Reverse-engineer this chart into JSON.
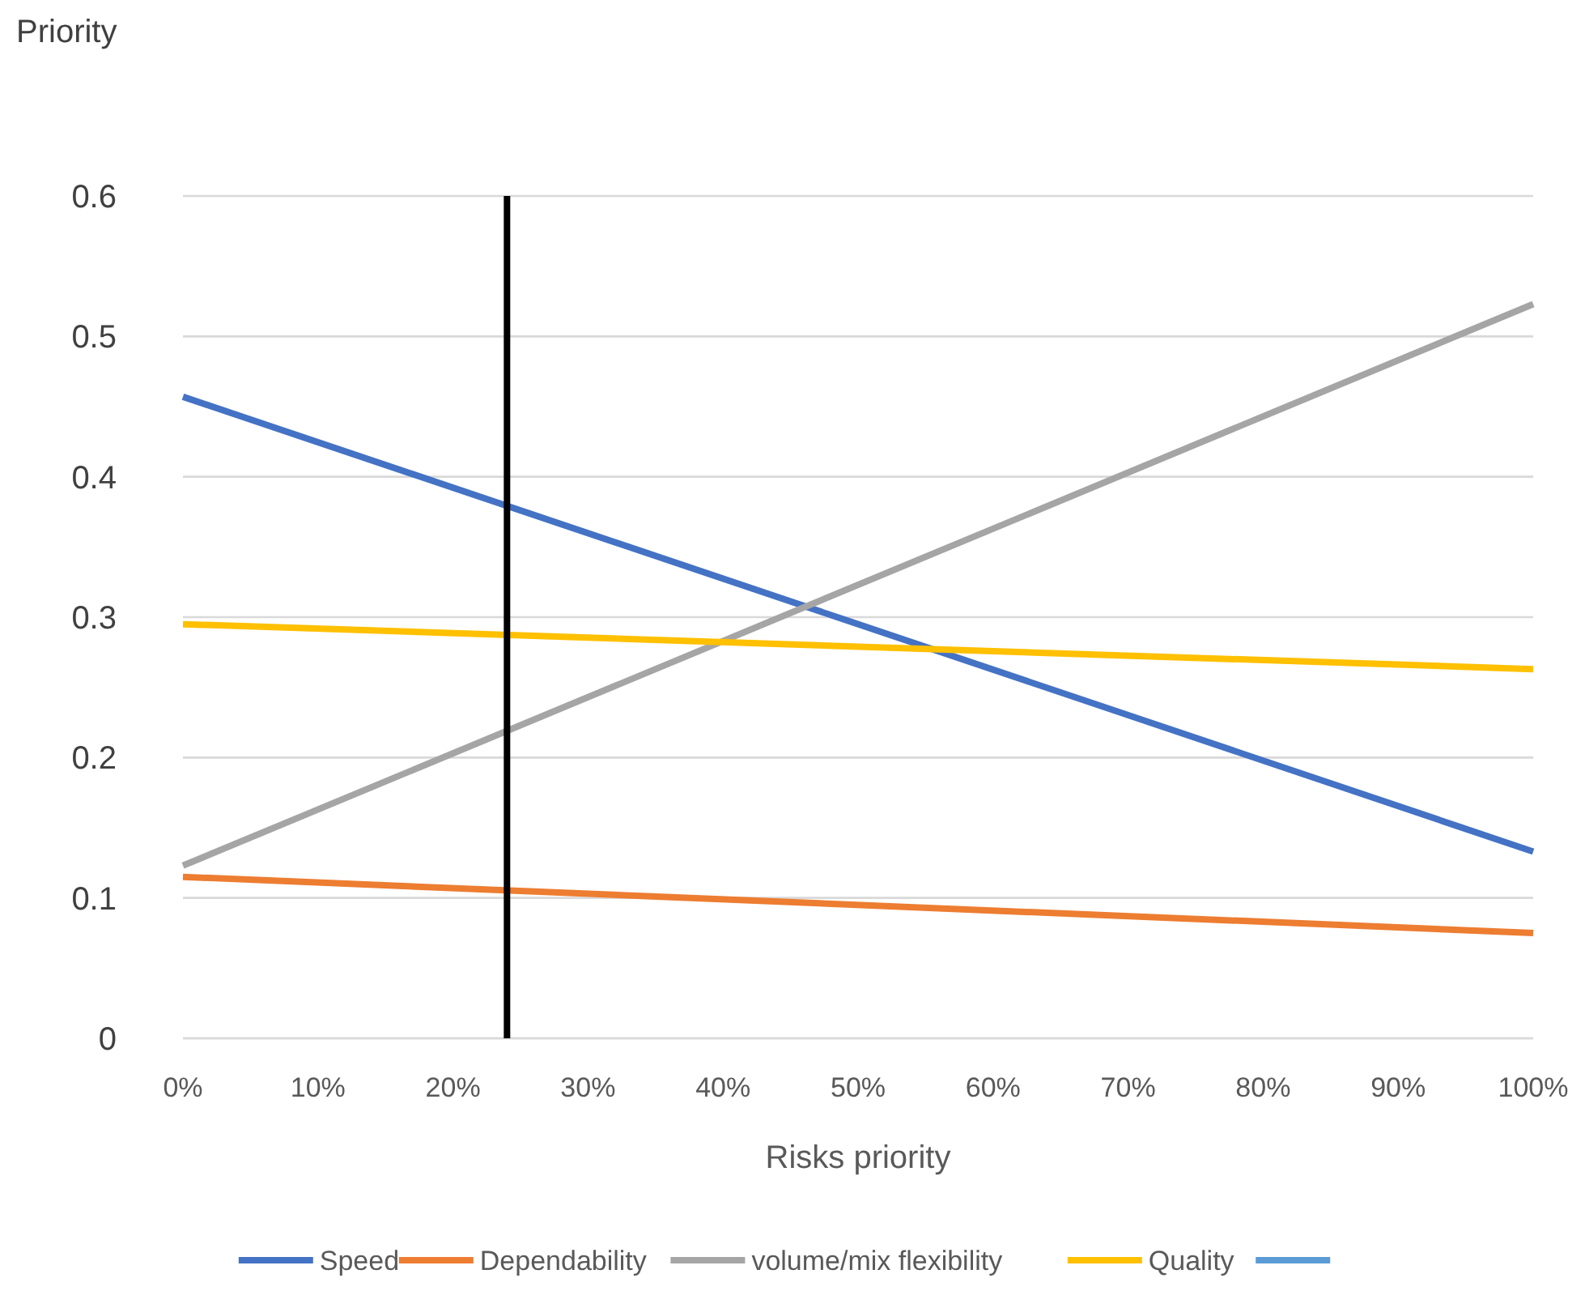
{
  "chart_data": {
    "type": "line",
    "ylabel": "Priority",
    "xlabel": "Risks priority",
    "x": [
      0,
      100
    ],
    "series": [
      {
        "name": "Speed",
        "color": "#4472c4",
        "values": [
          0.457,
          0.133
        ]
      },
      {
        "name": "Dependability",
        "color": "#ed7d31",
        "values": [
          0.115,
          0.075
        ]
      },
      {
        "name": "volume/mix flexibility",
        "color": "#a5a5a5",
        "values": [
          0.123,
          0.523
        ]
      },
      {
        "name": "Quality",
        "color": "#ffc000",
        "values": [
          0.295,
          0.263
        ]
      },
      {
        "color": "#5b9bd5",
        "values": [
          null,
          null
        ]
      }
    ],
    "xlim": [
      0,
      100
    ],
    "xticks": [
      {
        "value": 0,
        "label": "0%"
      },
      {
        "value": 10,
        "label": "10%"
      },
      {
        "value": 20,
        "label": "20%"
      },
      {
        "value": 30,
        "label": "30%"
      },
      {
        "value": 40,
        "label": "40%"
      },
      {
        "value": 50,
        "label": "50%"
      },
      {
        "value": 60,
        "label": "60%"
      },
      {
        "value": 70,
        "label": "70%"
      },
      {
        "value": 80,
        "label": "80%"
      },
      {
        "value": 90,
        "label": "90%"
      },
      {
        "value": 100,
        "label": "100%"
      }
    ],
    "ylim": [
      0,
      0.6
    ],
    "yticks": [
      0,
      0.1,
      0.2,
      0.3,
      0.4,
      0.5,
      0.6
    ],
    "ref_lines": [
      {
        "axis": "x",
        "value": 24,
        "color": "#000000"
      }
    ],
    "grid": "y",
    "legend": "bottom",
    "line_style": "solid",
    "marker": "none"
  }
}
